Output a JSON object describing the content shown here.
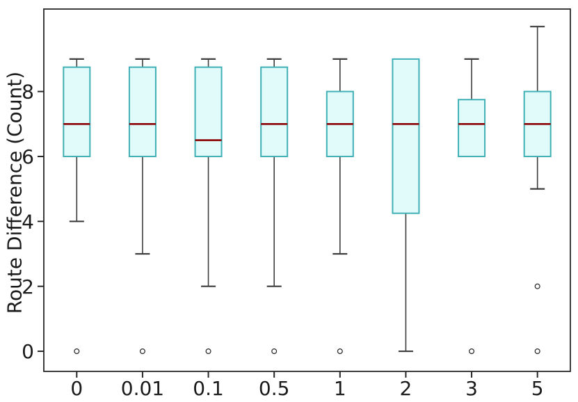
{
  "chart_data": {
    "type": "boxplot",
    "title": "",
    "xlabel": "",
    "ylabel": "Route Difference (Count)",
    "categories": [
      "0",
      "0.01",
      "0.1",
      "0.5",
      "1",
      "2",
      "3",
      "5"
    ],
    "yticks": [
      0,
      2,
      4,
      6,
      8
    ],
    "ylim": [
      -0.62,
      10.54
    ],
    "grid": false,
    "legend": "none",
    "series": [
      {
        "category": "0",
        "whisker_low": 4,
        "q1": 6,
        "median": 7,
        "q3": 8.75,
        "whisker_high": 9,
        "outliers": [
          0
        ]
      },
      {
        "category": "0.01",
        "whisker_low": 3,
        "q1": 6,
        "median": 7,
        "q3": 8.75,
        "whisker_high": 9,
        "outliers": [
          0
        ]
      },
      {
        "category": "0.1",
        "whisker_low": 2,
        "q1": 6,
        "median": 6.5,
        "q3": 8.75,
        "whisker_high": 9,
        "outliers": [
          0
        ]
      },
      {
        "category": "0.5",
        "whisker_low": 2,
        "q1": 6,
        "median": 7,
        "q3": 8.75,
        "whisker_high": 9,
        "outliers": [
          0
        ]
      },
      {
        "category": "1",
        "whisker_low": 3,
        "q1": 6,
        "median": 7,
        "q3": 8,
        "whisker_high": 9,
        "outliers": [
          0
        ]
      },
      {
        "category": "2",
        "whisker_low": 0,
        "q1": 4.25,
        "median": 7,
        "q3": 9,
        "whisker_high": 9,
        "outliers": []
      },
      {
        "category": "3",
        "whisker_low": 6,
        "q1": 6,
        "median": 7,
        "q3": 7.75,
        "whisker_high": 9,
        "outliers": [
          0
        ]
      },
      {
        "category": "5",
        "whisker_low": 5,
        "q1": 6,
        "median": 7,
        "q3": 8,
        "whisker_high": 10,
        "outliers": [
          0,
          2
        ]
      }
    ],
    "colors": {
      "box_fill": "#e1fafa",
      "box_edge": "#3fb0b5",
      "median": "#8b0000",
      "whisker": "#3d3d3d",
      "outlier_edge": "#2e2e2e",
      "axis": "#262626",
      "text": "#1a1a1a"
    }
  }
}
